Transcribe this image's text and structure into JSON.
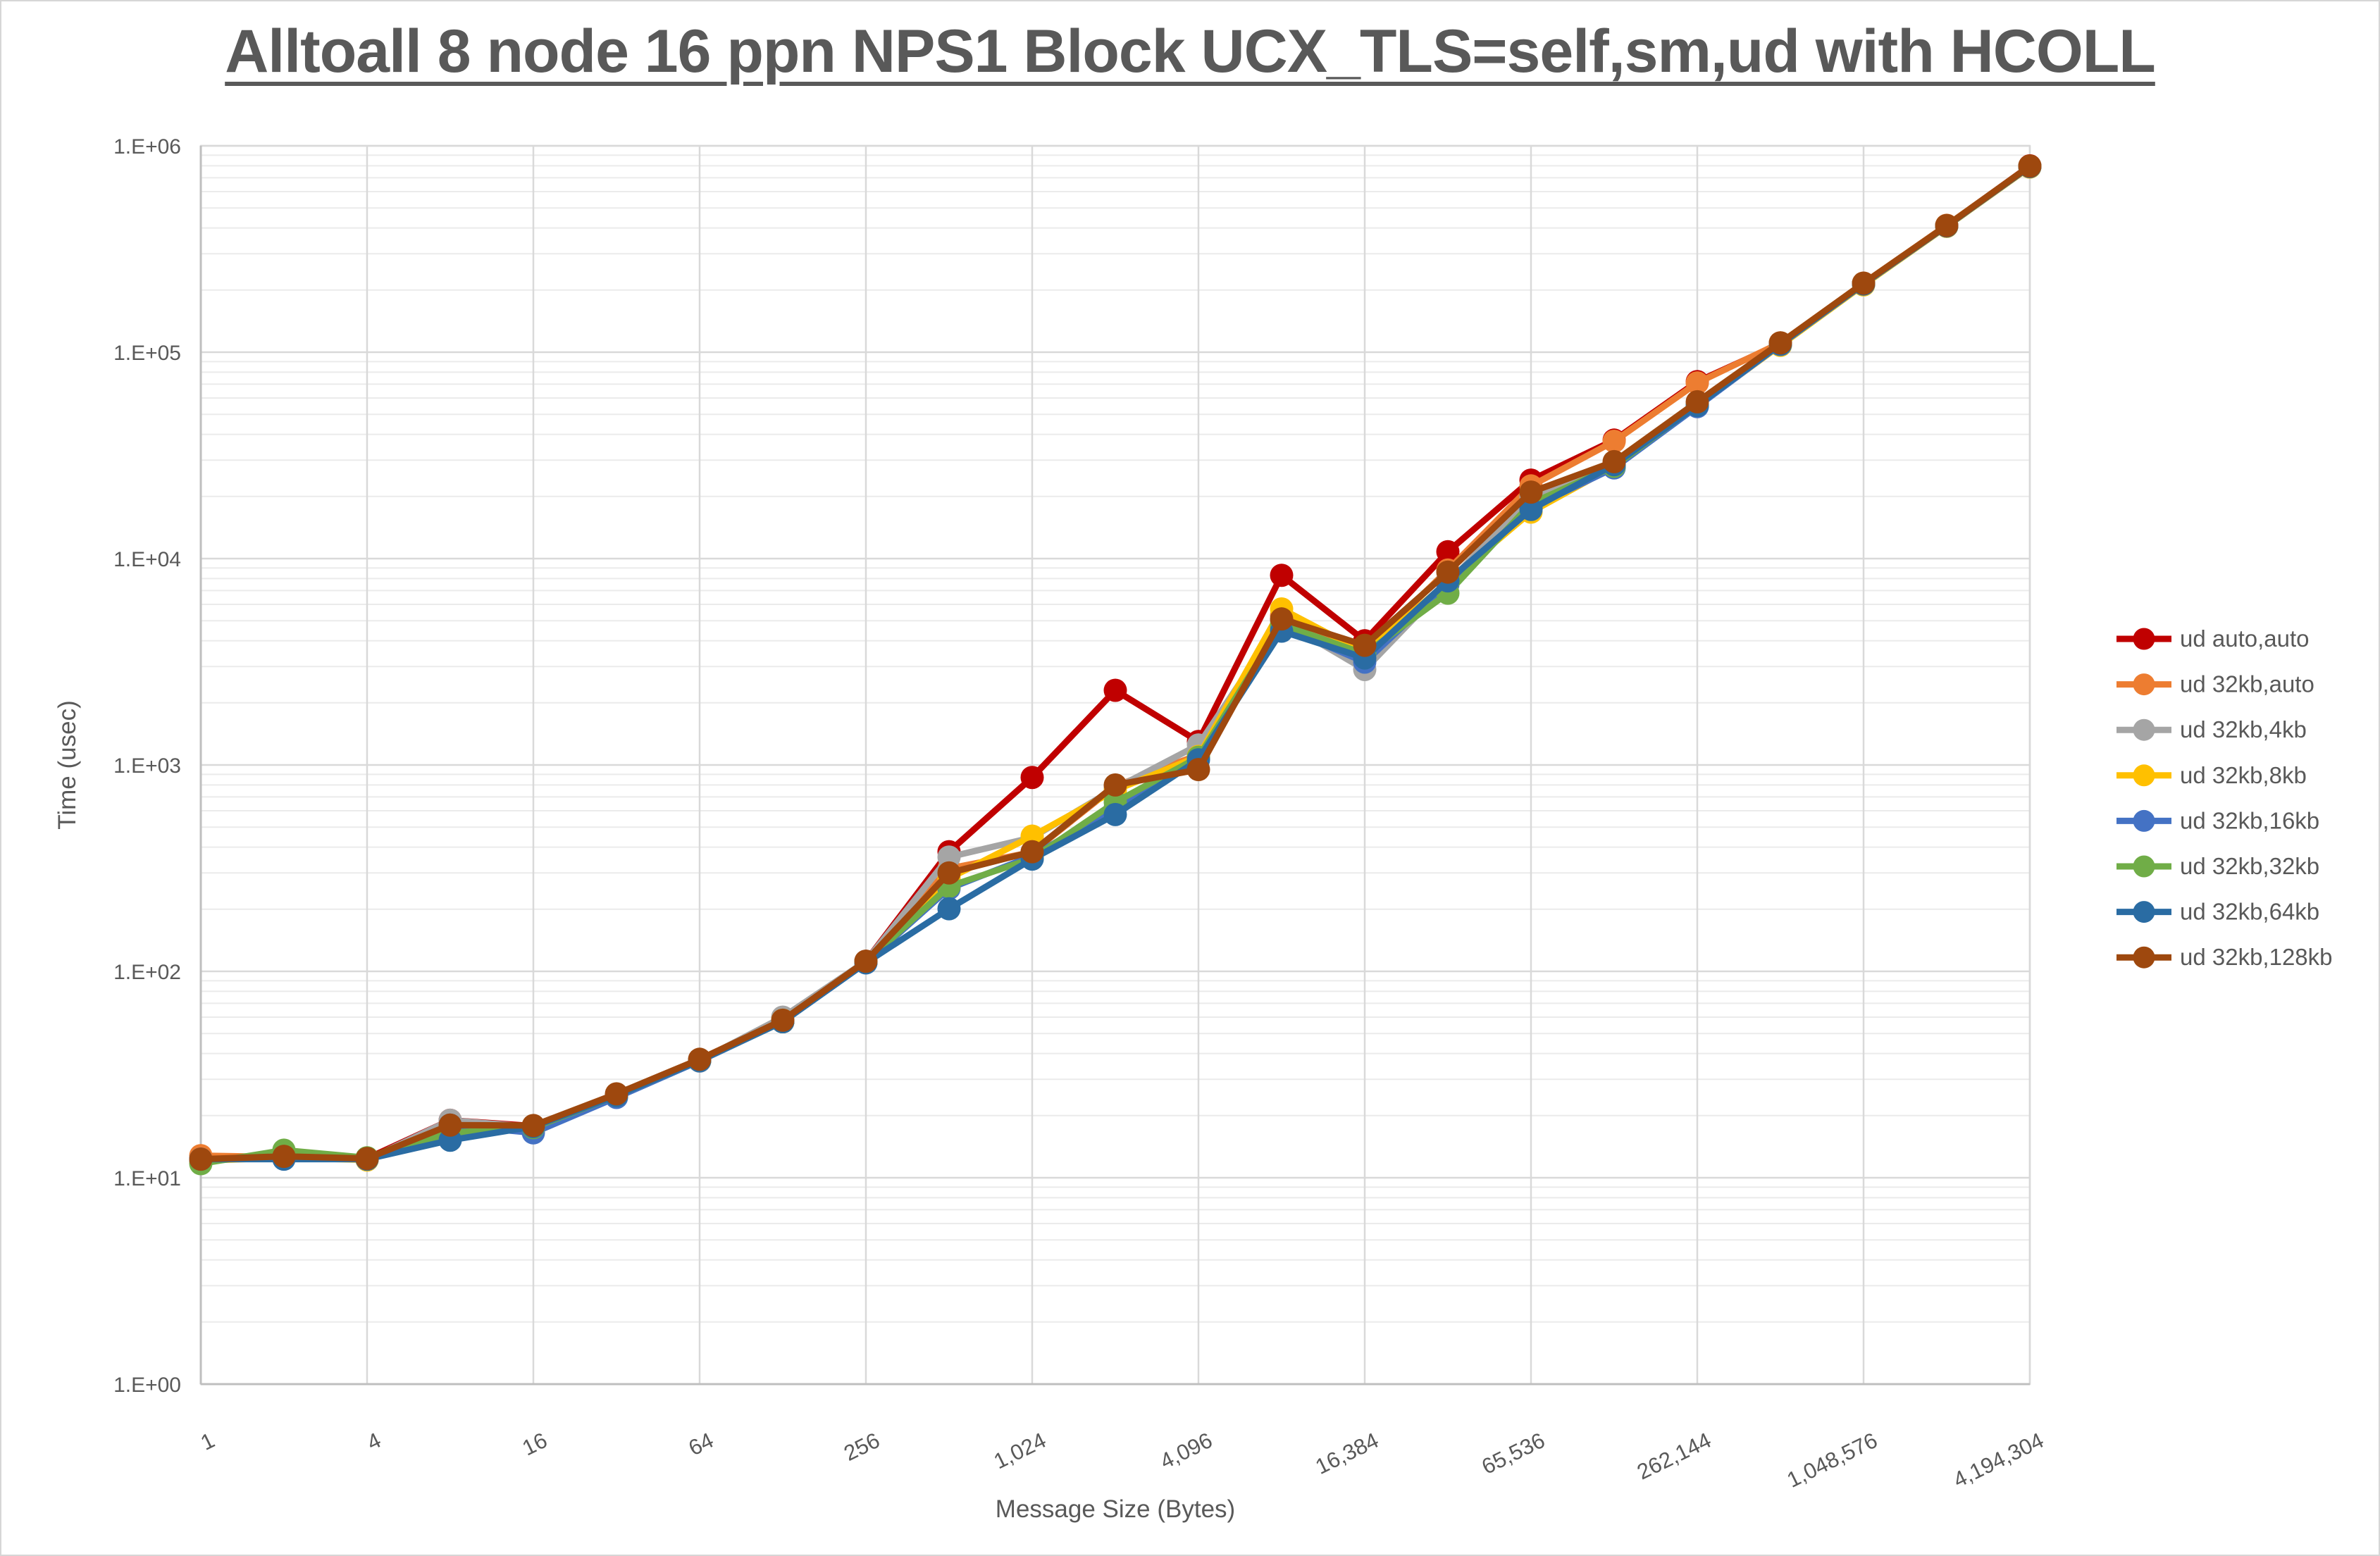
{
  "title": "Alltoall 8 node 16 ppn NPS1 Block UCX_TLS=self,sm,ud with HCOLL",
  "axes": {
    "x_title": "Message Size (Bytes)",
    "y_title": "Time (usec)",
    "y_tick_labels": [
      "1.E+00",
      "1.E+01",
      "1.E+02",
      "1.E+03",
      "1.E+04",
      "1.E+05",
      "1.E+06"
    ],
    "x_tick_labels": [
      "1",
      "4",
      "16",
      "64",
      "256",
      "1,024",
      "4,096",
      "16,384",
      "65,536",
      "262,144",
      "1,048,576",
      "4,194,304"
    ]
  },
  "colors": {
    "text": "#595959",
    "grid_minor": "#ebebeb",
    "grid_major": "#d9d9d9",
    "axis_line": "#bfbfbf",
    "plot_border": "#d9d9d9"
  },
  "chart_data": {
    "type": "line",
    "x_scale": "log2",
    "y_scale": "log10",
    "ylim": [
      1,
      1000000
    ],
    "grid": "log minor + major",
    "legend_position": "right",
    "x": [
      1,
      2,
      4,
      8,
      16,
      32,
      64,
      128,
      256,
      512,
      1024,
      2048,
      4096,
      8192,
      16384,
      32768,
      65536,
      131072,
      262144,
      524288,
      1048576,
      2097152,
      4194304
    ],
    "series": [
      {
        "name": "ud auto,auto",
        "color": "#c00000",
        "values": [
          12.3,
          12.6,
          12.4,
          19.0,
          17.8,
          25.0,
          37.0,
          57,
          112,
          380,
          870,
          2300,
          1300,
          8300,
          4000,
          10800,
          24000,
          37500,
          72000,
          110000,
          215000,
          410000,
          800000
        ]
      },
      {
        "name": "ud 32kb,auto",
        "color": "#ed7d31",
        "values": [
          12.8,
          12.6,
          12.4,
          17.5,
          17.6,
          25.0,
          37.0,
          57,
          111,
          315,
          378,
          790,
          1120,
          5300,
          3600,
          8800,
          22500,
          37000,
          71000,
          111000,
          216000,
          412000,
          795000
        ]
      },
      {
        "name": "ud 32kb,4kb",
        "color": "#a5a5a5",
        "values": [
          12.2,
          12.7,
          12.2,
          19.0,
          17.6,
          25.0,
          37.0,
          60,
          112,
          358,
          445,
          770,
          1250,
          5000,
          2900,
          7600,
          20000,
          28500,
          56000,
          109000,
          213000,
          408000,
          791000
        ]
      },
      {
        "name": "ud 32kb,8kb",
        "color": "#ffc000",
        "values": [
          12.1,
          12.5,
          12.2,
          17.6,
          17.4,
          24.8,
          36.8,
          58,
          111,
          282,
          452,
          755,
          1100,
          5700,
          3500,
          7700,
          16800,
          28000,
          55000,
          108000,
          212000,
          407000,
          789000
        ]
      },
      {
        "name": "ud 32kb,16kb",
        "color": "#4472c4",
        "values": [
          12.3,
          12.5,
          12.3,
          18.0,
          16.5,
          24.5,
          36.8,
          57,
          110,
          252,
          362,
          620,
          1080,
          4700,
          3150,
          7500,
          17600,
          27500,
          54500,
          109000,
          214000,
          409000,
          793000
        ]
      },
      {
        "name": "ud 32kb,32kb",
        "color": "#70ad47",
        "values": [
          11.7,
          13.6,
          12.5,
          16.5,
          17.5,
          25.0,
          37.0,
          57,
          111,
          258,
          352,
          660,
          1090,
          4800,
          3450,
          6800,
          18500,
          28000,
          55500,
          110000,
          215000,
          410000,
          797000
        ]
      },
      {
        "name": "ud 32kb,64kb",
        "color": "#2a6ca3",
        "values": [
          12.3,
          12.3,
          12.3,
          15.2,
          17.7,
          25.0,
          37.0,
          57,
          110,
          201,
          350,
          575,
          1060,
          4450,
          3300,
          7800,
          17300,
          28500,
          55200,
          109500,
          214000,
          409000,
          794000
        ]
      },
      {
        "name": "ud 32kb,128kb",
        "color": "#9e480e",
        "values": [
          12.3,
          12.7,
          12.4,
          18.0,
          17.9,
          25.5,
          37.5,
          58,
          112,
          300,
          380,
          800,
          950,
          5100,
          3800,
          8600,
          21000,
          29500,
          57500,
          111000,
          216000,
          411000,
          798000
        ]
      }
    ]
  }
}
